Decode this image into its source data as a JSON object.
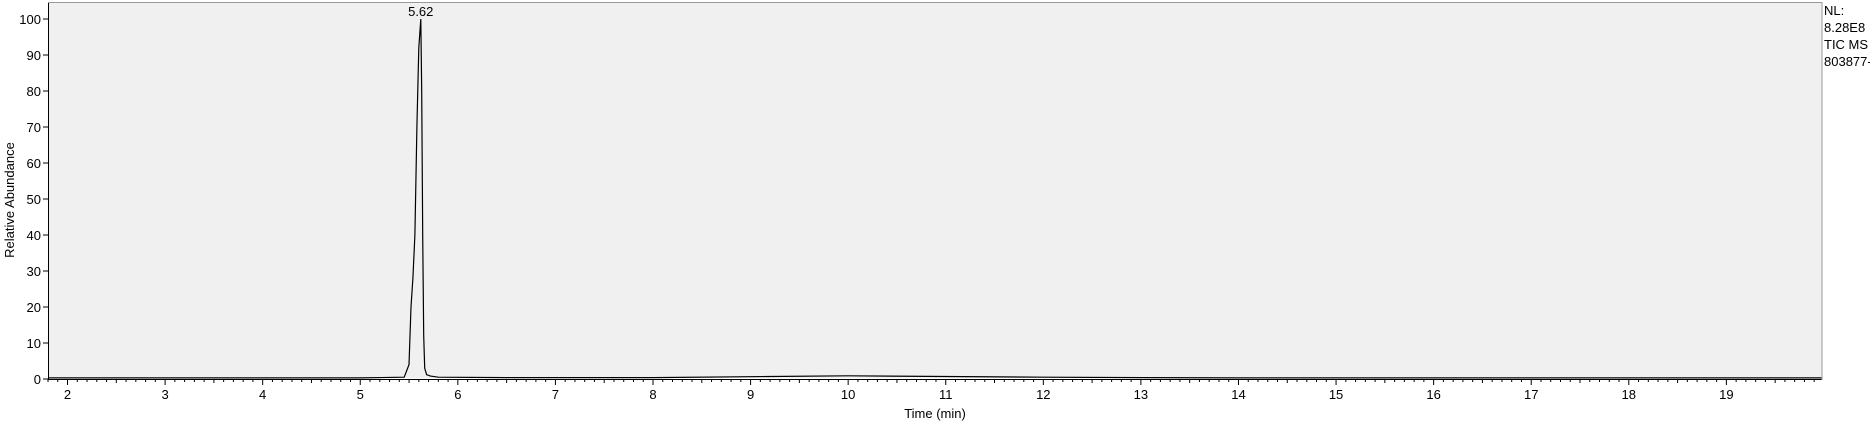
{
  "chart_data": {
    "type": "line",
    "title": "",
    "xlabel": "Time (min)",
    "ylabel": "Relative Abundance",
    "xlim": [
      1.8,
      19.98
    ],
    "ylim": [
      0,
      100
    ],
    "x_ticks": [
      2,
      3,
      4,
      5,
      6,
      7,
      8,
      9,
      10,
      11,
      12,
      13,
      14,
      15,
      16,
      17,
      18,
      19
    ],
    "y_ticks": [
      0,
      10,
      20,
      30,
      40,
      50,
      60,
      70,
      80,
      90,
      100
    ],
    "grid": false,
    "series": [
      {
        "x": [
          1.8,
          5.0,
          5.45,
          5.5,
          5.52,
          5.54,
          5.56,
          5.58,
          5.6,
          5.62,
          5.63,
          5.64,
          5.65,
          5.66,
          5.68,
          5.72,
          5.8,
          6.5,
          8.0,
          9.2,
          10.0,
          11.0,
          12.0,
          13.0,
          14.0,
          16.0,
          19.98
        ],
        "y": [
          0.3,
          0.3,
          0.5,
          4,
          20,
          28,
          40,
          70,
          92,
          100,
          80,
          40,
          12,
          3,
          1.2,
          0.8,
          0.5,
          0.4,
          0.4,
          0.7,
          0.9,
          0.7,
          0.5,
          0.4,
          0.3,
          0.3,
          0.3
        ]
      }
    ],
    "annotations": [
      {
        "text": "5.62",
        "x": 5.62,
        "y": 100
      }
    ]
  },
  "info_panel": {
    "lines": [
      "NL:",
      "8.28E8",
      "TIC  MS",
      "803877-"
    ]
  },
  "colors": {
    "plot_background": "#f0f0f0",
    "trace": "#000000",
    "frame": "#000000"
  }
}
